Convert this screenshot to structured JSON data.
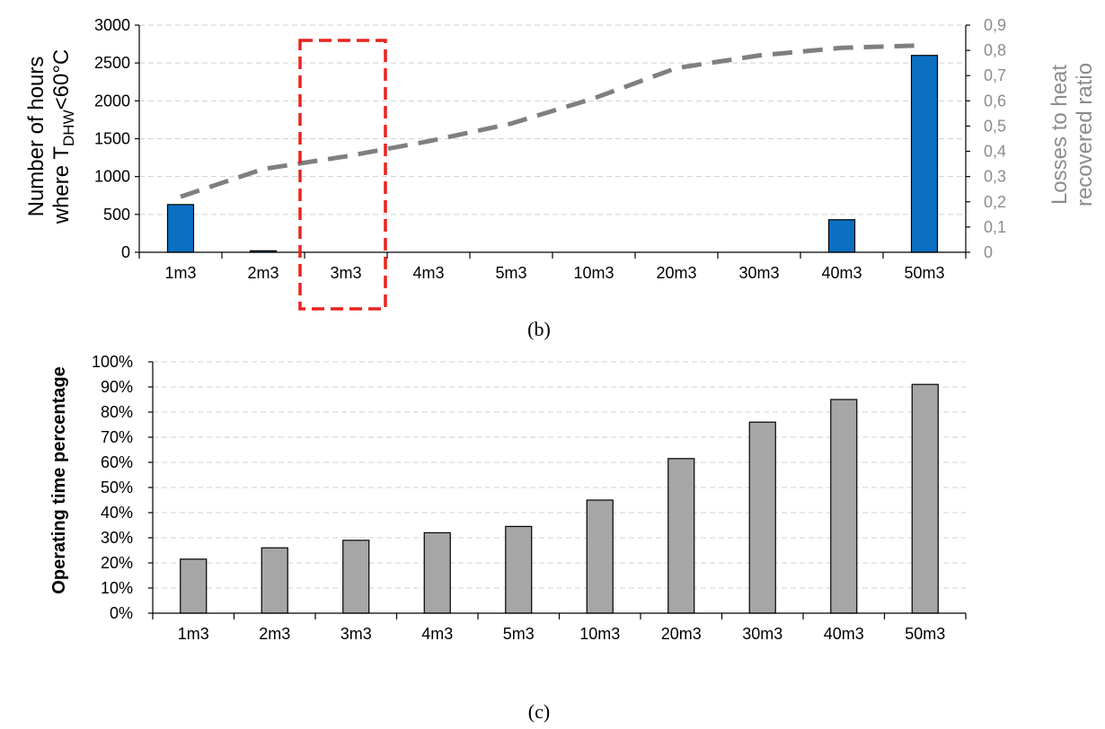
{
  "chart_data": [
    {
      "type": "bar",
      "caption": "(b)",
      "categories": [
        "1m3",
        "2m3",
        "3m3",
        "4m3",
        "5m3",
        "10m3",
        "20m3",
        "30m3",
        "40m3",
        "50m3"
      ],
      "ylabel_line1": "Number of hours",
      "ylabel_line2_prefix": "where T",
      "ylabel_line2_sub": "DHW",
      "ylabel_line2_suffix": "<60°C",
      "y2label_line1": "Losses to heat",
      "y2label_line2": "recovered ratio",
      "ylim": [
        0,
        3000
      ],
      "yticks": [
        "0",
        "500",
        "1000",
        "1500",
        "2000",
        "2500",
        "3000"
      ],
      "y2lim": [
        0,
        0.9
      ],
      "y2ticks": [
        "0",
        "0,1",
        "0,2",
        "0,3",
        "0,4",
        "0,5",
        "0,6",
        "0,7",
        "0,8",
        "0,9"
      ],
      "grid": true,
      "series": [
        {
          "kind": "bar",
          "axis": "left",
          "color": "#0b6fc2",
          "values": [
            630,
            20,
            0,
            0,
            0,
            0,
            0,
            0,
            430,
            2600
          ]
        },
        {
          "kind": "line",
          "axis": "right",
          "style": "dashed",
          "color": "#7f7f7f",
          "values": [
            0.22,
            0.33,
            0.38,
            0.44,
            0.51,
            0.61,
            0.73,
            0.78,
            0.81,
            0.82
          ]
        }
      ],
      "highlight": {
        "category": "3m3",
        "style": "dashed",
        "color": "#e8231f"
      }
    },
    {
      "type": "bar",
      "caption": "(c)",
      "categories": [
        "1m3",
        "2m3",
        "3m3",
        "4m3",
        "5m3",
        "10m3",
        "20m3",
        "30m3",
        "40m3",
        "50m3"
      ],
      "ylabel": "Operating time percentage",
      "ylim": [
        0,
        100
      ],
      "yticks": [
        "0%",
        "10%",
        "20%",
        "30%",
        "40%",
        "50%",
        "60%",
        "70%",
        "80%",
        "90%",
        "100%"
      ],
      "grid": true,
      "series": [
        {
          "kind": "bar",
          "axis": "left",
          "color": "#a6a6a6",
          "values": [
            21.5,
            26,
            29,
            32,
            34.5,
            45,
            61.5,
            76,
            85,
            91
          ]
        }
      ]
    }
  ]
}
